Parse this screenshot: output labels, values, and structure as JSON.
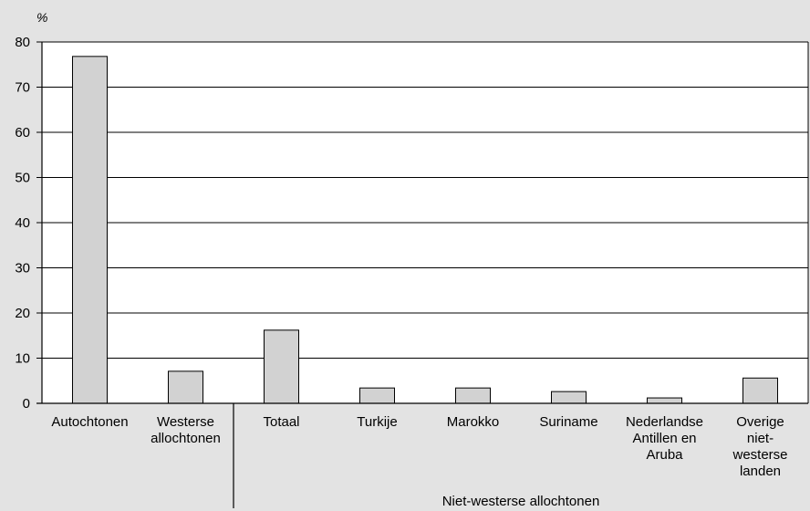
{
  "chart_data": {
    "type": "bar",
    "unit_label": "%",
    "ylim": [
      0,
      80
    ],
    "yticks": [
      0,
      10,
      20,
      30,
      40,
      50,
      60,
      70,
      80
    ],
    "grid": true,
    "categories": [
      [
        "Autochtonen"
      ],
      [
        "Westerse",
        "allochtonen"
      ],
      [
        "Totaal"
      ],
      [
        "Turkije"
      ],
      [
        "Marokko"
      ],
      [
        "Suriname"
      ],
      [
        "Nederlandse",
        "Antillen en",
        "Aruba"
      ],
      [
        "Overige",
        "niet-",
        "westerse",
        "landen"
      ]
    ],
    "values": [
      76.8,
      7.1,
      16.2,
      3.4,
      3.4,
      2.6,
      1.2,
      5.6
    ],
    "group_label": "Niet-westerse allochtonen",
    "bar_color": "#d2d2d2",
    "bar_stroke": "#000000",
    "background": "#e3e3e3",
    "plot_background": "#ffffff"
  }
}
